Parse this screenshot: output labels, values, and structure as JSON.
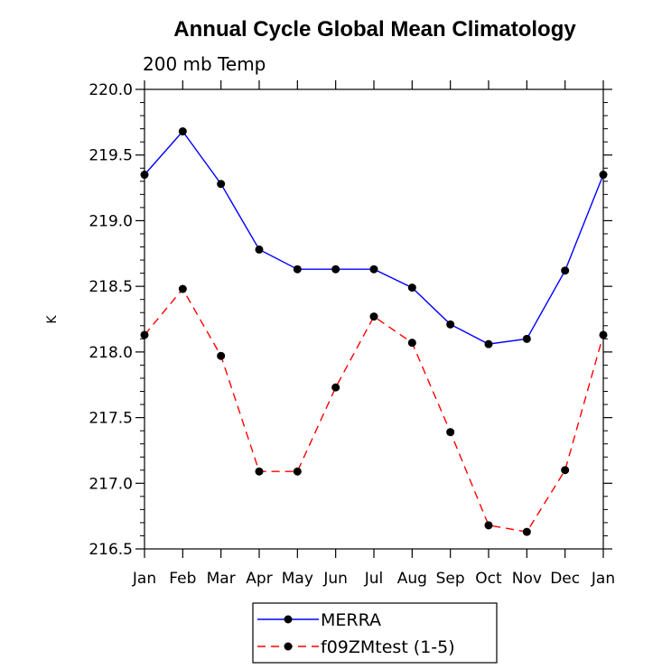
{
  "chart_data": {
    "type": "line",
    "title": "Annual Cycle Global Mean Climatology",
    "subtitle": "200 mb Temp",
    "ylabel": "K",
    "xlabel": "",
    "categories": [
      "Jan",
      "Feb",
      "Mar",
      "Apr",
      "May",
      "Jun",
      "Jul",
      "Aug",
      "Sep",
      "Oct",
      "Nov",
      "Dec",
      "Jan"
    ],
    "ylim": [
      216.5,
      220.0
    ],
    "yticks": [
      "216.5",
      "217.0",
      "217.5",
      "218.0",
      "218.5",
      "219.0",
      "219.5",
      "220.0"
    ],
    "series": [
      {
        "name": "MERRA",
        "color": "#0000ff",
        "dash": "solid",
        "values": [
          219.35,
          219.68,
          219.28,
          218.78,
          218.63,
          218.63,
          218.63,
          218.49,
          218.21,
          218.06,
          218.1,
          218.62,
          219.35
        ]
      },
      {
        "name": "f09ZMtest (1-5)",
        "color": "#ff0000",
        "dash": "dashed",
        "values": [
          218.13,
          218.48,
          217.97,
          217.09,
          217.09,
          217.73,
          218.27,
          218.07,
          217.39,
          216.68,
          216.63,
          217.1,
          218.13
        ]
      }
    ]
  }
}
